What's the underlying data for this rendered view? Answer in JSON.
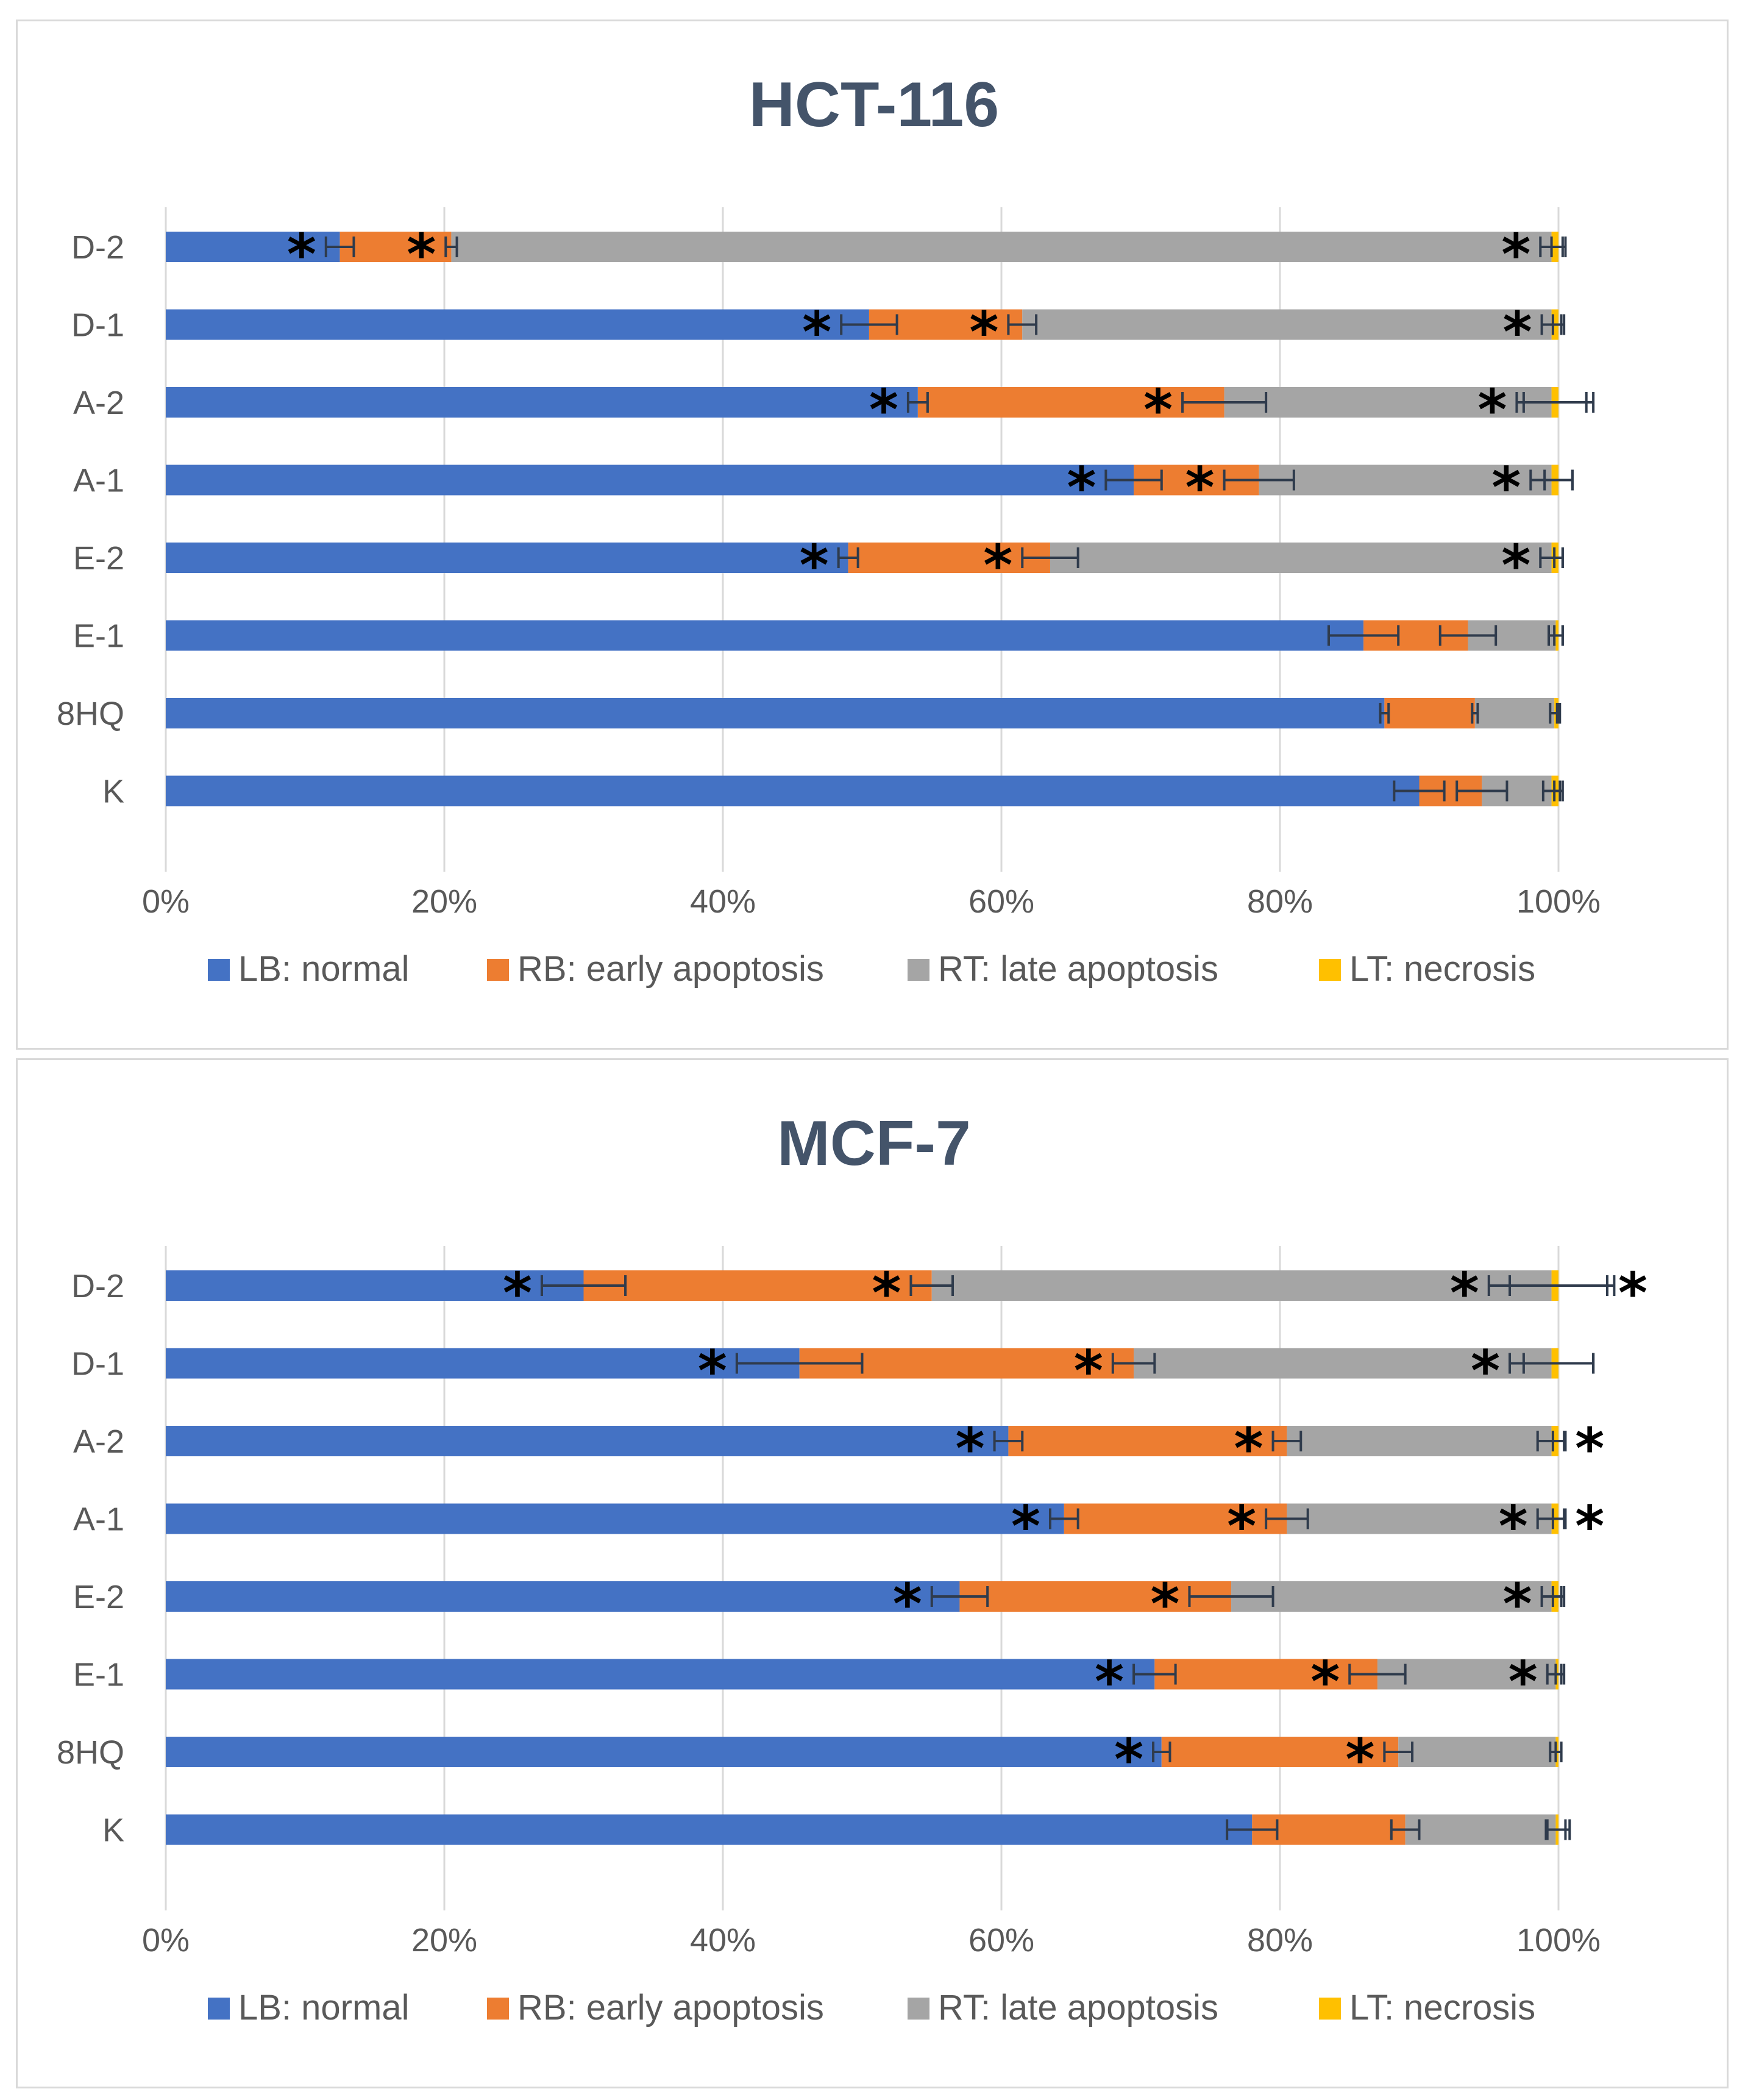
{
  "chart_data": [
    {
      "type": "bar",
      "orientation": "horizontal",
      "stacked": "percent",
      "title": "HCT-116",
      "categories": [
        "D-2",
        "D-1",
        "A-2",
        "A-1",
        "E-2",
        "E-1",
        "8HQ",
        "K"
      ],
      "x_ticks": [
        "0%",
        "20%",
        "40%",
        "60%",
        "80%",
        "100%"
      ],
      "xlim": [
        0,
        100
      ],
      "grid": "vertical",
      "legend": "bottom",
      "colors": [
        "#4472c4",
        "#ed7d31",
        "#a5a5a5",
        "#ffc000"
      ],
      "series": [
        {
          "name": "LB: normal",
          "values": [
            12.5,
            50.5,
            54.0,
            69.5,
            49.0,
            86.0,
            87.5,
            90.0
          ],
          "errors": [
            1.0,
            2.0,
            0.7,
            2.0,
            0.7,
            2.5,
            0.3,
            1.8
          ]
        },
        {
          "name": "RB: early apoptosis",
          "values": [
            8.0,
            11.0,
            22.0,
            9.0,
            14.5,
            7.5,
            6.5,
            4.5
          ],
          "errors": [
            0.4,
            1.0,
            3.0,
            2.5,
            2.0,
            2.0,
            0.2,
            1.8
          ]
        },
        {
          "name": "RT: late apoptosis",
          "values": [
            79.0,
            38.0,
            23.5,
            21.0,
            36.0,
            6.3,
            5.7,
            5.0
          ],
          "errors": [
            0.8,
            0.7,
            2.5,
            1.5,
            0.8,
            0.5,
            0.3,
            0.6
          ]
        },
        {
          "name": "LT: necrosis",
          "values": [
            0.5,
            0.5,
            0.5,
            0.5,
            0.5,
            0.2,
            0.3,
            0.5
          ],
          "errors": [
            0.5,
            0.4,
            2.5,
            1.0,
            0.3,
            0.3,
            0.1,
            0.3
          ]
        }
      ],
      "significance": [
        {
          "category": "D-2",
          "series": [
            "LB: normal",
            "RB: early apoptosis",
            "RT: late apoptosis"
          ]
        },
        {
          "category": "D-1",
          "series": [
            "LB: normal",
            "RB: early apoptosis",
            "RT: late apoptosis"
          ]
        },
        {
          "category": "A-2",
          "series": [
            "LB: normal",
            "RB: early apoptosis",
            "RT: late apoptosis"
          ]
        },
        {
          "category": "A-1",
          "series": [
            "LB: normal",
            "RB: early apoptosis",
            "RT: late apoptosis"
          ]
        },
        {
          "category": "E-2",
          "series": [
            "LB: normal",
            "RB: early apoptosis",
            "RT: late apoptosis"
          ]
        }
      ],
      "significance_mark": "*"
    },
    {
      "type": "bar",
      "orientation": "horizontal",
      "stacked": "percent",
      "title": "MCF-7",
      "categories": [
        "D-2",
        "D-1",
        "A-2",
        "A-1",
        "E-2",
        "E-1",
        "8HQ",
        "K"
      ],
      "x_ticks": [
        "0%",
        "20%",
        "40%",
        "60%",
        "80%",
        "100%"
      ],
      "xlim": [
        0,
        100
      ],
      "grid": "vertical",
      "legend": "bottom",
      "colors": [
        "#4472c4",
        "#ed7d31",
        "#a5a5a5",
        "#ffc000"
      ],
      "series": [
        {
          "name": "LB: normal",
          "values": [
            30.0,
            45.5,
            60.5,
            64.5,
            57.0,
            71.0,
            71.5,
            78.0
          ],
          "errors": [
            3.0,
            4.5,
            1.0,
            1.0,
            2.0,
            1.5,
            0.6,
            1.8
          ]
        },
        {
          "name": "RB: early apoptosis",
          "values": [
            25.0,
            24.0,
            20.0,
            16.0,
            19.5,
            16.0,
            17.0,
            11.0
          ],
          "errors": [
            1.5,
            1.5,
            1.0,
            1.5,
            3.0,
            2.0,
            1.0,
            1.0
          ]
        },
        {
          "name": "RT: late apoptosis",
          "values": [
            44.5,
            30.0,
            19.0,
            19.0,
            23.0,
            12.8,
            11.3,
            10.8
          ],
          "errors": [
            4.5,
            3.0,
            1.0,
            1.0,
            0.7,
            0.6,
            0.4,
            0.7
          ]
        },
        {
          "name": "LT: necrosis",
          "values": [
            0.5,
            0.5,
            0.5,
            0.5,
            0.5,
            0.2,
            0.2,
            0.2
          ],
          "errors": [
            3.5,
            2.5,
            0.4,
            0.4,
            0.4,
            0.2,
            0.2,
            0.8
          ]
        }
      ],
      "significance": [
        {
          "category": "D-2",
          "series": [
            "LB: normal",
            "RB: early apoptosis",
            "RT: late apoptosis",
            "LT: necrosis"
          ]
        },
        {
          "category": "D-1",
          "series": [
            "LB: normal",
            "RB: early apoptosis",
            "RT: late apoptosis"
          ]
        },
        {
          "category": "A-2",
          "series": [
            "LB: normal",
            "RB: early apoptosis",
            "LT: necrosis"
          ]
        },
        {
          "category": "A-1",
          "series": [
            "LB: normal",
            "RB: early apoptosis",
            "RT: late apoptosis",
            "LT: necrosis"
          ]
        },
        {
          "category": "E-2",
          "series": [
            "LB: normal",
            "RB: early apoptosis",
            "RT: late apoptosis"
          ]
        },
        {
          "category": "E-1",
          "series": [
            "LB: normal",
            "RB: early apoptosis",
            "RT: late apoptosis"
          ]
        },
        {
          "category": "8HQ",
          "series": [
            "LB: normal",
            "RB: early apoptosis"
          ]
        }
      ],
      "significance_mark": "*"
    }
  ]
}
